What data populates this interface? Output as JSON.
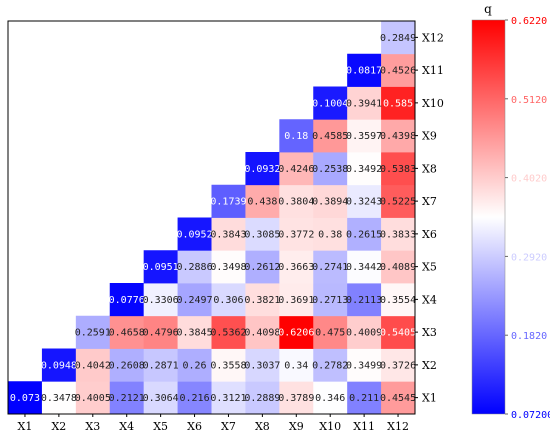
{
  "chart_data": {
    "type": "heatmap",
    "title": "",
    "xlabel": "",
    "ylabel": "",
    "x_labels": [
      "X1",
      "X2",
      "X3",
      "X4",
      "X5",
      "X6",
      "X7",
      "X8",
      "X9",
      "X10",
      "X11",
      "X12"
    ],
    "y_labels": [
      "X1",
      "X2",
      "X3",
      "X4",
      "X5",
      "X6",
      "X7",
      "X8",
      "X9",
      "X10",
      "X11",
      "X12"
    ],
    "cells": [
      {
        "x": "X1",
        "y": "X1",
        "value": 0.073,
        "label": "0.073"
      },
      {
        "x": "X2",
        "y": "X1",
        "value": 0.3478,
        "label": "0.3478"
      },
      {
        "x": "X3",
        "y": "X1",
        "value": 0.4005,
        "label": "0.4005"
      },
      {
        "x": "X4",
        "y": "X1",
        "value": 0.2121,
        "label": "0.2121"
      },
      {
        "x": "X5",
        "y": "X1",
        "value": 0.3064,
        "label": "0.3064"
      },
      {
        "x": "X6",
        "y": "X1",
        "value": 0.216,
        "label": "0.216"
      },
      {
        "x": "X7",
        "y": "X1",
        "value": 0.3121,
        "label": "0.3121"
      },
      {
        "x": "X8",
        "y": "X1",
        "value": 0.2889,
        "label": "0.2889"
      },
      {
        "x": "X9",
        "y": "X1",
        "value": 0.3789,
        "label": "0.3789"
      },
      {
        "x": "X10",
        "y": "X1",
        "value": 0.346,
        "label": "0.346"
      },
      {
        "x": "X11",
        "y": "X1",
        "value": 0.211,
        "label": "0.211"
      },
      {
        "x": "X12",
        "y": "X1",
        "value": 0.4545,
        "label": "0.4545"
      },
      {
        "x": "X2",
        "y": "X2",
        "value": 0.0948,
        "label": "0.0948"
      },
      {
        "x": "X3",
        "y": "X2",
        "value": 0.4042,
        "label": "0.4042"
      },
      {
        "x": "X4",
        "y": "X2",
        "value": 0.2608,
        "label": "0.2608"
      },
      {
        "x": "X5",
        "y": "X2",
        "value": 0.2871,
        "label": "0.2871"
      },
      {
        "x": "X6",
        "y": "X2",
        "value": 0.26,
        "label": "0.26"
      },
      {
        "x": "X7",
        "y": "X2",
        "value": 0.3558,
        "label": "0.3558"
      },
      {
        "x": "X8",
        "y": "X2",
        "value": 0.3037,
        "label": "0.3037"
      },
      {
        "x": "X9",
        "y": "X2",
        "value": 0.34,
        "label": "0.34"
      },
      {
        "x": "X10",
        "y": "X2",
        "value": 0.2782,
        "label": "0.2782"
      },
      {
        "x": "X11",
        "y": "X2",
        "value": 0.3499,
        "label": "0.3499"
      },
      {
        "x": "X12",
        "y": "X2",
        "value": 0.3726,
        "label": "0.3726"
      },
      {
        "x": "X3",
        "y": "X3",
        "value": 0.2591,
        "label": "0.2591"
      },
      {
        "x": "X4",
        "y": "X3",
        "value": 0.4658,
        "label": "0.4658"
      },
      {
        "x": "X5",
        "y": "X3",
        "value": 0.4796,
        "label": "0.4796"
      },
      {
        "x": "X6",
        "y": "X3",
        "value": 0.3845,
        "label": "0.3845"
      },
      {
        "x": "X7",
        "y": "X3",
        "value": 0.5362,
        "label": "0.5362"
      },
      {
        "x": "X8",
        "y": "X3",
        "value": 0.4098,
        "label": "0.4098"
      },
      {
        "x": "X9",
        "y": "X3",
        "value": 0.6206,
        "label": "0.6206"
      },
      {
        "x": "X10",
        "y": "X3",
        "value": 0.475,
        "label": "0.475"
      },
      {
        "x": "X11",
        "y": "X3",
        "value": 0.4009,
        "label": "0.4009"
      },
      {
        "x": "X12",
        "y": "X3",
        "value": 0.5405,
        "label": "0.5405"
      },
      {
        "x": "X4",
        "y": "X4",
        "value": 0.0776,
        "label": "0.0776"
      },
      {
        "x": "X5",
        "y": "X4",
        "value": 0.3306,
        "label": "0.3306"
      },
      {
        "x": "X6",
        "y": "X4",
        "value": 0.2497,
        "label": "0.2497"
      },
      {
        "x": "X7",
        "y": "X4",
        "value": 0.306,
        "label": "0.306"
      },
      {
        "x": "X8",
        "y": "X4",
        "value": 0.3821,
        "label": "0.3821"
      },
      {
        "x": "X9",
        "y": "X4",
        "value": 0.3691,
        "label": "0.3691"
      },
      {
        "x": "X10",
        "y": "X4",
        "value": 0.2713,
        "label": "0.2713"
      },
      {
        "x": "X11",
        "y": "X4",
        "value": 0.2113,
        "label": "0.2113"
      },
      {
        "x": "X12",
        "y": "X4",
        "value": 0.3554,
        "label": "0.3554"
      },
      {
        "x": "X5",
        "y": "X5",
        "value": 0.0951,
        "label": "0.0951"
      },
      {
        "x": "X6",
        "y": "X5",
        "value": 0.2886,
        "label": "0.2886"
      },
      {
        "x": "X7",
        "y": "X5",
        "value": 0.3498,
        "label": "0.3498"
      },
      {
        "x": "X8",
        "y": "X5",
        "value": 0.2612,
        "label": "0.2612"
      },
      {
        "x": "X9",
        "y": "X5",
        "value": 0.3663,
        "label": "0.3663"
      },
      {
        "x": "X10",
        "y": "X5",
        "value": 0.2741,
        "label": "0.2741"
      },
      {
        "x": "X11",
        "y": "X5",
        "value": 0.3442,
        "label": "0.3442"
      },
      {
        "x": "X12",
        "y": "X5",
        "value": 0.4089,
        "label": "0.4089"
      },
      {
        "x": "X6",
        "y": "X6",
        "value": 0.0952,
        "label": "0.0952"
      },
      {
        "x": "X7",
        "y": "X6",
        "value": 0.3843,
        "label": "0.3843"
      },
      {
        "x": "X8",
        "y": "X6",
        "value": 0.3085,
        "label": "0.3085"
      },
      {
        "x": "X9",
        "y": "X6",
        "value": 0.3772,
        "label": "0.3772"
      },
      {
        "x": "X10",
        "y": "X6",
        "value": 0.38,
        "label": "0.38"
      },
      {
        "x": "X11",
        "y": "X6",
        "value": 0.2615,
        "label": "0.2615"
      },
      {
        "x": "X12",
        "y": "X6",
        "value": 0.3833,
        "label": "0.3833"
      },
      {
        "x": "X7",
        "y": "X7",
        "value": 0.1739,
        "label": "0.1739"
      },
      {
        "x": "X8",
        "y": "X7",
        "value": 0.438,
        "label": "0.438"
      },
      {
        "x": "X9",
        "y": "X7",
        "value": 0.3804,
        "label": "0.3804"
      },
      {
        "x": "X10",
        "y": "X7",
        "value": 0.3894,
        "label": "0.3894"
      },
      {
        "x": "X11",
        "y": "X7",
        "value": 0.3243,
        "label": "0.3243"
      },
      {
        "x": "X12",
        "y": "X7",
        "value": 0.5225,
        "label": "0.5225"
      },
      {
        "x": "X8",
        "y": "X8",
        "value": 0.0932,
        "label": "0.0932"
      },
      {
        "x": "X9",
        "y": "X8",
        "value": 0.4246,
        "label": "0.4246"
      },
      {
        "x": "X10",
        "y": "X8",
        "value": 0.2538,
        "label": "0.2538"
      },
      {
        "x": "X11",
        "y": "X8",
        "value": 0.3492,
        "label": "0.3492"
      },
      {
        "x": "X12",
        "y": "X8",
        "value": 0.5383,
        "label": "0.5383"
      },
      {
        "x": "X9",
        "y": "X9",
        "value": 0.18,
        "label": "0.18"
      },
      {
        "x": "X10",
        "y": "X9",
        "value": 0.4585,
        "label": "0.4585"
      },
      {
        "x": "X11",
        "y": "X9",
        "value": 0.3597,
        "label": "0.3597"
      },
      {
        "x": "X12",
        "y": "X9",
        "value": 0.4398,
        "label": "0.4398"
      },
      {
        "x": "X10",
        "y": "X10",
        "value": 0.1004,
        "label": "0.1004"
      },
      {
        "x": "X11",
        "y": "X10",
        "value": 0.3941,
        "label": "0.3941"
      },
      {
        "x": "X12",
        "y": "X10",
        "value": 0.585,
        "label": "0.585"
      },
      {
        "x": "X11",
        "y": "X11",
        "value": 0.0817,
        "label": "0.0817"
      },
      {
        "x": "X12",
        "y": "X11",
        "value": 0.4526,
        "label": "0.4526"
      },
      {
        "x": "X12",
        "y": "X12",
        "value": 0.2849,
        "label": "0.2849"
      }
    ],
    "colorbar": {
      "label": "q",
      "min": 0.072,
      "max": 0.622,
      "ticks": [
        "0.6220",
        "0.5120",
        "0.4020",
        "0.2920",
        "0.1820",
        "0.07200"
      ],
      "colors": {
        "low": "#0000ff",
        "mid": "#ffffff",
        "high": "#ff0000"
      }
    },
    "grid": false,
    "legend": "right"
  }
}
